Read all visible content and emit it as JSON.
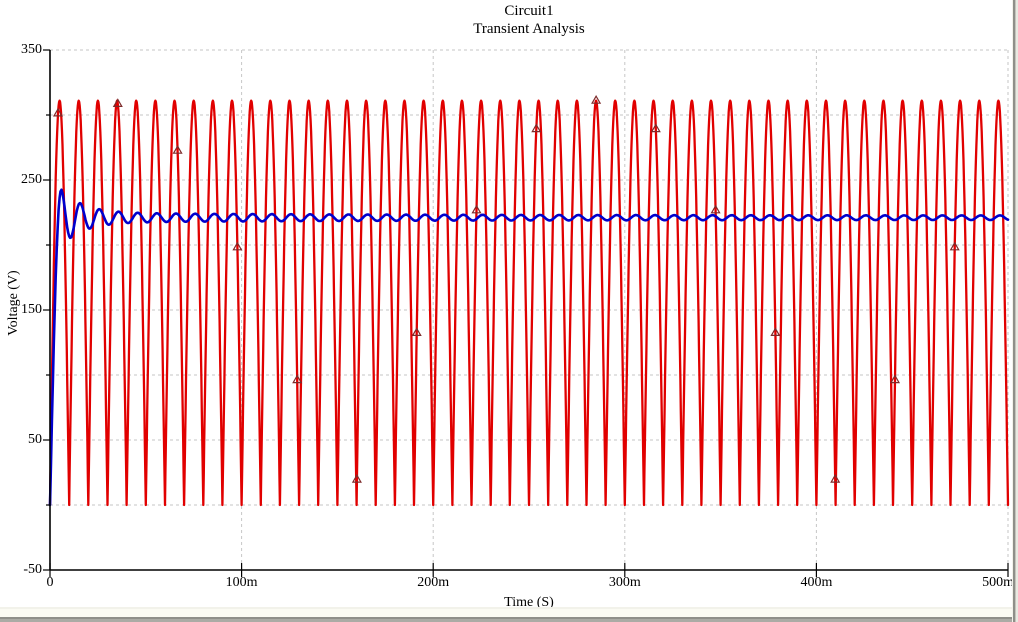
{
  "title": {
    "line1": "Circuit1",
    "line2": "Transient Analysis"
  },
  "axes": {
    "y": {
      "label": "Voltage (V)",
      "tick_labels": [
        "350",
        "250",
        "150",
        "50",
        "-50"
      ],
      "major_tick_values": [
        350,
        250,
        150,
        50,
        -50
      ],
      "minor_tick_values": [
        300,
        200,
        100,
        0
      ]
    },
    "x": {
      "label": "Time (S)",
      "tick_labels": [
        "0",
        "100m",
        "200m",
        "300m",
        "400m",
        "500m"
      ],
      "major_tick_values": [
        0,
        0.1,
        0.2,
        0.3,
        0.4,
        0.5
      ]
    }
  },
  "chart_data": {
    "type": "line",
    "title": "Circuit1",
    "subtitle": "Transient Analysis",
    "xlabel": "Time (S)",
    "ylabel": "Voltage (V)",
    "xlim": [
      0,
      0.5
    ],
    "ylim": [
      -50,
      350
    ],
    "grid": "dashed, every 50 V horizontally and every 100 ms vertically",
    "legend_position": "none",
    "series": [
      {
        "name": "rectified-source-voltage",
        "color": "#e10000",
        "waveform": "full-wave-rectified-sine",
        "peak_V": 311,
        "min_V": 0,
        "source_frequency_Hz": 50,
        "hump_period_ms": 10,
        "description": "Full-wave rectified sinusoid, 0 V to ~311 V peaks, ~50 humps over 0..500 ms"
      },
      {
        "name": "filtered-output-voltage",
        "color": "#0000cd",
        "waveform": "damped-settling-with-ripple",
        "start_V": 0,
        "overshoot_peak_V": 243,
        "overshoot_time_s": 0.0058,
        "oscillation_Hz": 100,
        "decay_time_constant_s": 0.012,
        "steady_state_V": 221,
        "steady_ripple_V": 1.7,
        "description": "Rises from 0 V, overshoots to ~243 V near t=6 ms, damped 100 Hz oscillation settling to ~221 V with small residual ripple"
      }
    ],
    "trace_markers": {
      "glyph": "triangle",
      "color": "#7d2b2b",
      "on_series": "rectified-source-voltage",
      "first_time_s": 0.0042,
      "interval_s": 0.0312
    }
  },
  "colors": {
    "background": "#ffffff",
    "axis": "#000000",
    "grid": "#c6c6c6",
    "red_trace": "#e10000",
    "blue_trace": "#0000cd",
    "marker": "#7d2b2b",
    "text": "#000000"
  }
}
